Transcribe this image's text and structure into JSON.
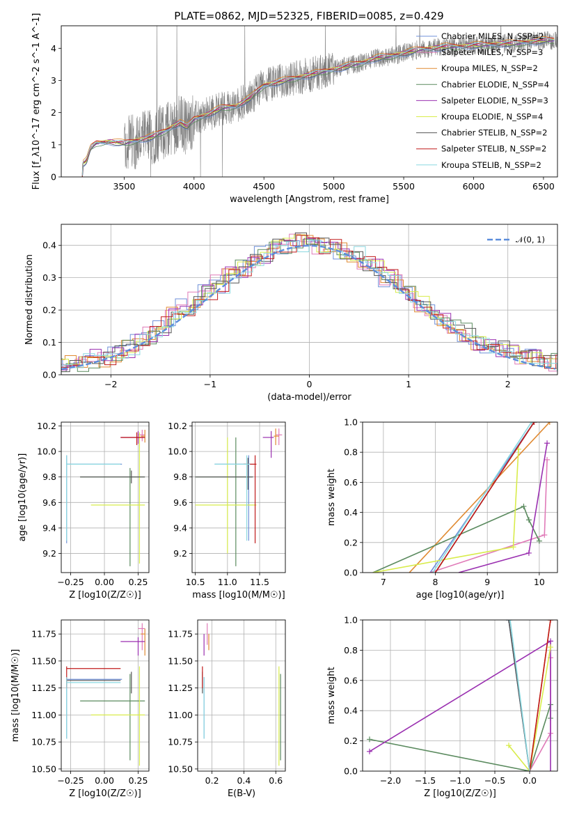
{
  "title": "PLATE=0862, MJD=52325, FIBERID=0085, z=0.429",
  "colors": {
    "chabrier_miles": "#6f8fd8",
    "salpeter_miles": "#e07ab8",
    "kroupa_miles": "#e08a32",
    "chabrier_elodie": "#5a8a5e",
    "salpeter_elodie": "#9a2fb0",
    "kroupa_elodie": "#d8ec4a",
    "chabrier_stelib": "#555555",
    "salpeter_stelib": "#c01a1a",
    "kroupa_stelib": "#8ad8e0",
    "gauss": "#5b8ddb",
    "data": "#808080"
  },
  "chart_data": [
    {
      "type": "line",
      "xlabel": "wavelength [Angstrom, rest frame]",
      "ylabel": "Flux [f_λ10^-17 erg cm^-2 s^-1 A^-1]",
      "xlim": [
        3050,
        6600
      ],
      "ylim": [
        0,
        4.7
      ],
      "xticks": [
        "3500",
        "4000",
        "4500",
        "5000",
        "5500",
        "6000",
        "6500"
      ],
      "yticks": [
        "0",
        "1",
        "2",
        "3",
        "4"
      ],
      "legend": [
        "Chabrier MILES, N_SSP=2",
        "Salpeter MILES, N_SSP=3",
        "Kroupa MILES, N_SSP=2",
        "Chabrier ELODIE, N_SSP=4",
        "Salpeter ELODIE, N_SSP=3",
        "Kroupa ELODIE, N_SSP=4",
        "Chabrier STELIB, N_SSP=2",
        "Salpeter STELIB, N_SSP=2",
        "Kroupa STELIB, N_SSP=2"
      ],
      "model_x": [
        3200,
        3230,
        3260,
        3300,
        3400,
        3500,
        3600,
        3700,
        3800,
        3900,
        3950,
        4000,
        4100,
        4200,
        4300,
        4400,
        4500,
        4600,
        4700,
        4800,
        4900,
        5000,
        5100,
        5200,
        5300,
        5400,
        5500,
        5600,
        5700,
        5800,
        5900,
        6000,
        6100,
        6200,
        6300,
        6400,
        6500
      ],
      "model_y": [
        0.4,
        0.5,
        0.9,
        1.05,
        1.1,
        1.05,
        1.15,
        1.25,
        1.45,
        1.7,
        1.55,
        1.8,
        1.95,
        2.15,
        2.2,
        2.45,
        2.85,
        2.95,
        3.05,
        3.15,
        3.25,
        3.35,
        3.45,
        3.55,
        3.7,
        3.75,
        3.85,
        3.95,
        4.0,
        4.05,
        4.05,
        4.1,
        4.1,
        4.15,
        4.15,
        4.2,
        4.25
      ]
    },
    {
      "type": "line",
      "xlabel": "(data-model)/error",
      "ylabel": "Normed distribution",
      "xlim": [
        -2.5,
        2.5
      ],
      "ylim": [
        0,
        0.465
      ],
      "xticks": [
        "−2",
        "−1",
        "0",
        "1",
        "2"
      ],
      "yticks": [
        "0.0",
        "0.1",
        "0.2",
        "0.3",
        "0.4"
      ],
      "legend": "𝒩(0, 1)",
      "hist_base": [
        0.02,
        0.03,
        0.04,
        0.05,
        0.05,
        0.06,
        0.08,
        0.1,
        0.12,
        0.15,
        0.18,
        0.21,
        0.23,
        0.26,
        0.28,
        0.31,
        0.33,
        0.35,
        0.37,
        0.39,
        0.4,
        0.41,
        0.41,
        0.4,
        0.39,
        0.38,
        0.37,
        0.35,
        0.33,
        0.3,
        0.28,
        0.25,
        0.22,
        0.2,
        0.17,
        0.15,
        0.13,
        0.1,
        0.09,
        0.08,
        0.07,
        0.06,
        0.05,
        0.04,
        0.04,
        0.03
      ]
    },
    {
      "type": "scatter",
      "name": "age-vs-Z",
      "xlabel": "Z [log10(Z/Z☉)]",
      "ylabel": "age  [log10(age/yr)]",
      "xlim": [
        -0.32,
        0.33
      ],
      "ylim": [
        9.05,
        10.23
      ],
      "xticks": [
        "−0.25",
        "0.00",
        "0.25"
      ],
      "yticks": [
        "9.2",
        "9.4",
        "9.6",
        "9.8",
        "10.0",
        "10.2"
      ],
      "points": [
        {
          "c": "chabrier_miles",
          "x": -0.28,
          "y": 9.9,
          "xe": [
            -0.28,
            0.13
          ],
          "ye": [
            9.28,
            9.97
          ]
        },
        {
          "c": "salpeter_miles",
          "x": 0.28,
          "y": 10.13,
          "xe": [
            0.25,
            0.3
          ],
          "ye": [
            10.08,
            10.17
          ]
        },
        {
          "c": "kroupa_miles",
          "x": 0.3,
          "y": 10.12,
          "xe": [
            0.27,
            0.3
          ],
          "ye": [
            10.07,
            10.17
          ]
        },
        {
          "c": "chabrier_elodie",
          "x": 0.19,
          "y": 9.8,
          "xe": [
            -0.18,
            0.3
          ],
          "ye": [
            9.1,
            9.87
          ]
        },
        {
          "c": "salpeter_elodie",
          "x": 0.25,
          "y": 10.11,
          "xe": [
            0.12,
            0.3
          ],
          "ye": [
            10.06,
            10.16
          ]
        },
        {
          "c": "kroupa_elodie",
          "x": 0.26,
          "y": 9.58,
          "xe": [
            -0.1,
            0.3
          ],
          "ye": [
            9.12,
            10.15
          ]
        },
        {
          "c": "chabrier_stelib",
          "x": 0.2,
          "y": 9.8,
          "xe": [
            -0.18,
            0.3
          ],
          "ye": [
            9.75,
            9.85
          ]
        },
        {
          "c": "salpeter_stelib",
          "x": 0.24,
          "y": 10.11,
          "xe": [
            0.12,
            0.3
          ],
          "ye": [
            10.05,
            10.15
          ]
        },
        {
          "c": "kroupa_stelib",
          "x": -0.28,
          "y": 9.9,
          "xe": [
            -0.28,
            0.12
          ],
          "ye": [
            9.3,
            9.97
          ]
        }
      ]
    },
    {
      "type": "scatter",
      "name": "age-vs-mass",
      "xlabel": "mass [log10(M/M☉)]",
      "ylabel": "",
      "xlim": [
        10.45,
        11.9
      ],
      "ylim": [
        9.05,
        10.23
      ],
      "xticks": [
        "10.5",
        "11.0",
        "11.5"
      ],
      "yticks": [
        "9.2",
        "9.4",
        "9.6",
        "9.8",
        "10.0",
        "10.2"
      ],
      "points": [
        {
          "c": "chabrier_miles",
          "x": 11.33,
          "y": 9.9,
          "xe": [
            10.8,
            11.35
          ],
          "ye": [
            9.3,
            9.97
          ]
        },
        {
          "c": "salpeter_miles",
          "x": 11.8,
          "y": 10.13,
          "xe": [
            11.75,
            11.85
          ],
          "ye": [
            10.05,
            10.18
          ]
        },
        {
          "c": "kroupa_miles",
          "x": 11.75,
          "y": 10.12,
          "xe": [
            11.72,
            11.8
          ],
          "ye": [
            10.05,
            10.18
          ]
        },
        {
          "c": "chabrier_elodie",
          "x": 11.13,
          "y": 9.8,
          "xe": [
            10.5,
            11.38
          ],
          "ye": [
            9.1,
            10.11
          ]
        },
        {
          "c": "salpeter_elodie",
          "x": 11.68,
          "y": 10.11,
          "xe": [
            11.55,
            11.72
          ],
          "ye": [
            9.95,
            10.16
          ]
        },
        {
          "c": "kroupa_elodie",
          "x": 11.0,
          "y": 9.58,
          "xe": [
            10.5,
            11.45
          ],
          "ye": [
            9.2,
            10.11
          ]
        },
        {
          "c": "chabrier_stelib",
          "x": 11.32,
          "y": 9.8,
          "xe": [
            10.5,
            11.4
          ],
          "ye": [
            9.7,
            9.95
          ]
        },
        {
          "c": "salpeter_stelib",
          "x": 11.43,
          "y": 9.9,
          "xe": [
            11.25,
            11.45
          ],
          "ye": [
            9.28,
            9.97
          ]
        },
        {
          "c": "kroupa_stelib",
          "x": 11.3,
          "y": 9.9,
          "xe": [
            10.8,
            11.35
          ],
          "ye": [
            9.3,
            9.97
          ]
        }
      ]
    },
    {
      "type": "line",
      "name": "mass-weight-vs-age",
      "xlabel": "age  [log10(age/yr)]",
      "ylabel": "mass weight",
      "xlim": [
        6.6,
        10.35
      ],
      "ylim": [
        0,
        1.0
      ],
      "xticks": [
        "7",
        "8",
        "9",
        "10"
      ],
      "yticks": [
        "0.0",
        "0.2",
        "0.4",
        "0.6",
        "0.8",
        "1.0"
      ],
      "series": [
        {
          "c": "chabrier_miles",
          "pts": [
            [
              7.9,
              0
            ],
            [
              9.9,
              1.0
            ]
          ]
        },
        {
          "c": "kroupa_miles",
          "pts": [
            [
              7.5,
              0
            ],
            [
              10.2,
              1.0
            ]
          ]
        },
        {
          "c": "salpeter_miles",
          "pts": [
            [
              7.9,
              0
            ],
            [
              10.1,
              0.25
            ],
            [
              10.15,
              0.75
            ]
          ]
        },
        {
          "c": "chabrier_elodie",
          "pts": [
            [
              6.8,
              0
            ],
            [
              9.7,
              0.44
            ],
            [
              9.8,
              0.35
            ],
            [
              10.0,
              0.21
            ]
          ]
        },
        {
          "c": "salpeter_elodie",
          "pts": [
            [
              8.45,
              0
            ],
            [
              9.8,
              0.13
            ],
            [
              10.15,
              0.86
            ]
          ]
        },
        {
          "c": "kroupa_elodie",
          "pts": [
            [
              6.8,
              0
            ],
            [
              9.5,
              0.17
            ],
            [
              9.6,
              0.82
            ]
          ]
        },
        {
          "c": "chabrier_stelib",
          "pts": [
            [
              8.0,
              0
            ],
            [
              9.9,
              1.0
            ]
          ]
        },
        {
          "c": "salpeter_stelib",
          "pts": [
            [
              8.0,
              0
            ],
            [
              9.9,
              1.0
            ]
          ]
        },
        {
          "c": "kroupa_stelib",
          "pts": [
            [
              7.95,
              0
            ],
            [
              9.85,
              1.0
            ]
          ]
        }
      ]
    },
    {
      "type": "scatter",
      "name": "mass-vs-Z",
      "xlabel": "Z [log10(Z/Z☉)]",
      "ylabel": "mass [log10(M/M☉)]",
      "xlim": [
        -0.32,
        0.33
      ],
      "ylim": [
        10.48,
        11.88
      ],
      "xticks": [
        "−0.25",
        "0.00",
        "0.25"
      ],
      "yticks": [
        "10.50",
        "10.75",
        "11.00",
        "11.25",
        "11.50",
        "11.75"
      ],
      "points": [
        {
          "c": "chabrier_miles",
          "x": -0.28,
          "y": 11.33,
          "xe": [
            -0.28,
            0.13
          ],
          "ye": [
            10.78,
            11.35
          ]
        },
        {
          "c": "salpeter_miles",
          "x": 0.28,
          "y": 11.8,
          "xe": [
            0.25,
            0.3
          ],
          "ye": [
            11.6,
            11.85
          ]
        },
        {
          "c": "kroupa_miles",
          "x": 0.3,
          "y": 11.75,
          "xe": [
            0.27,
            0.3
          ],
          "ye": [
            11.55,
            11.8
          ]
        },
        {
          "c": "chabrier_elodie",
          "x": 0.19,
          "y": 11.13,
          "xe": [
            -0.18,
            0.3
          ],
          "ye": [
            10.58,
            11.38
          ]
        },
        {
          "c": "salpeter_elodie",
          "x": 0.25,
          "y": 11.68,
          "xe": [
            0.12,
            0.3
          ],
          "ye": [
            11.55,
            11.72
          ]
        },
        {
          "c": "kroupa_elodie",
          "x": 0.26,
          "y": 11.0,
          "xe": [
            -0.1,
            0.3
          ],
          "ye": [
            10.53,
            11.45
          ]
        },
        {
          "c": "chabrier_stelib",
          "x": 0.2,
          "y": 11.32,
          "xe": [
            -0.28,
            0.12
          ],
          "ye": [
            11.2,
            11.4
          ]
        },
        {
          "c": "salpeter_stelib",
          "x": -0.28,
          "y": 11.43,
          "xe": [
            -0.28,
            0.12
          ],
          "ye": [
            11.25,
            11.45
          ]
        },
        {
          "c": "kroupa_stelib",
          "x": -0.28,
          "y": 11.3,
          "xe": [
            -0.28,
            0.12
          ],
          "ye": [
            10.78,
            11.35
          ]
        }
      ]
    },
    {
      "type": "scatter",
      "name": "mass-vs-EBV",
      "xlabel": "E(B-V)",
      "ylabel": "",
      "xlim": [
        0.11,
        0.66
      ],
      "ylim": [
        10.48,
        11.88
      ],
      "xticks": [
        "0.2",
        "0.4",
        "0.6"
      ],
      "yticks": [
        "10.50",
        "10.75",
        "11.00",
        "11.25",
        "11.50",
        "11.75"
      ],
      "points": [
        {
          "c": "chabrier_miles",
          "x": 0.15,
          "y": 11.33,
          "ye": [
            10.78,
            11.35
          ]
        },
        {
          "c": "salpeter_miles",
          "x": 0.17,
          "y": 11.8,
          "ye": [
            11.65,
            11.85
          ]
        },
        {
          "c": "kroupa_miles",
          "x": 0.18,
          "y": 11.72,
          "ye": [
            11.6,
            11.75
          ]
        },
        {
          "c": "chabrier_elodie",
          "x": 0.63,
          "y": 11.13,
          "ye": [
            10.58,
            11.38
          ]
        },
        {
          "c": "salpeter_elodie",
          "x": 0.15,
          "y": 11.68,
          "ye": [
            11.55,
            11.75
          ]
        },
        {
          "c": "kroupa_elodie",
          "x": 0.62,
          "y": 11.0,
          "ye": [
            10.53,
            11.45
          ]
        },
        {
          "c": "chabrier_stelib",
          "x": 0.14,
          "y": 11.32,
          "ye": [
            11.2,
            11.4
          ]
        },
        {
          "c": "salpeter_stelib",
          "x": 0.14,
          "y": 11.43,
          "ye": [
            11.25,
            11.45
          ]
        },
        {
          "c": "kroupa_stelib",
          "x": 0.15,
          "y": 11.3,
          "ye": [
            10.78,
            11.35
          ]
        }
      ]
    },
    {
      "type": "line",
      "name": "mass-weight-vs-Z",
      "xlabel": "Z [log10(Z/Z☉)]",
      "ylabel": "mass weight",
      "xlim": [
        -2.4,
        0.4
      ],
      "ylim": [
        0,
        1.0
      ],
      "xticks": [
        "−2.0",
        "−1.5",
        "−1.0",
        "−0.5",
        "0.0"
      ],
      "yticks": [
        "0.0",
        "0.2",
        "0.4",
        "0.6",
        "0.8",
        "1.0"
      ],
      "series": [
        {
          "c": "chabrier_miles",
          "pts": [
            [
              -0.3,
              1.0
            ],
            [
              0,
              0
            ]
          ]
        },
        {
          "c": "kroupa_miles",
          "pts": [
            [
              0,
              0
            ],
            [
              0.3,
              1.0
            ]
          ]
        },
        {
          "c": "salpeter_miles",
          "pts": [
            [
              0,
              0
            ],
            [
              0.3,
              0.25
            ],
            [
              0.3,
              0.75
            ]
          ]
        },
        {
          "c": "chabrier_elodie",
          "pts": [
            [
              -2.3,
              0.21
            ],
            [
              0,
              0
            ],
            [
              0.3,
              0.44
            ],
            [
              0.3,
              0.35
            ]
          ]
        },
        {
          "c": "salpeter_elodie",
          "pts": [
            [
              -2.3,
              0.13
            ],
            [
              0.3,
              0.86
            ],
            [
              0.3,
              0
            ]
          ]
        },
        {
          "c": "kroupa_elodie",
          "pts": [
            [
              -0.3,
              0.17
            ],
            [
              0,
              0
            ],
            [
              0.3,
              0.82
            ]
          ]
        },
        {
          "c": "chabrier_stelib",
          "pts": [
            [
              -0.3,
              1.0
            ],
            [
              0,
              0
            ]
          ]
        },
        {
          "c": "salpeter_stelib",
          "pts": [
            [
              0,
              0
            ],
            [
              0.3,
              1.0
            ]
          ]
        },
        {
          "c": "kroupa_stelib",
          "pts": [
            [
              -0.28,
              1.0
            ],
            [
              0,
              0
            ]
          ]
        }
      ]
    }
  ]
}
